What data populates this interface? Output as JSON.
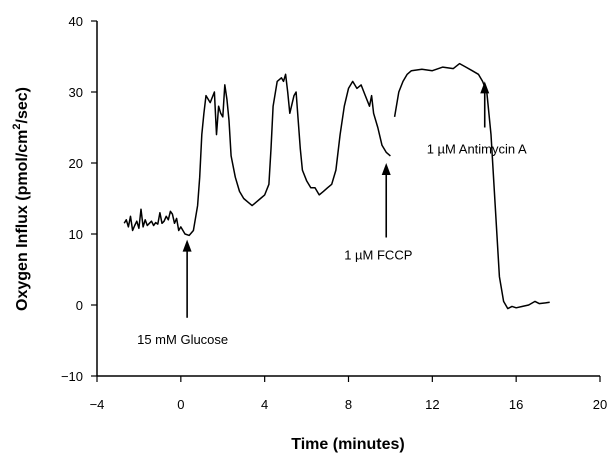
{
  "chart_data": {
    "type": "line",
    "title": "",
    "xlabel": "Time (minutes)",
    "ylabel": "Oxygen Influx (pmol/cm²/sec)",
    "ylabel_parts": {
      "before": "Oxygen Influx (pmol/cm",
      "sup": "2",
      "after": "/sec)"
    },
    "xlim": [
      -4,
      20
    ],
    "ylim": [
      -10,
      40
    ],
    "x_ticks": [
      -4,
      0,
      4,
      8,
      12,
      16,
      20
    ],
    "x_tick_labels": [
      "−4",
      "0",
      "4",
      "8",
      "12",
      "16",
      "20"
    ],
    "y_ticks": [
      -10,
      0,
      10,
      20,
      30,
      40
    ],
    "y_tick_labels": [
      "−10",
      "0",
      "10",
      "20",
      "30",
      "40"
    ],
    "grid": false,
    "legend": "none",
    "line_color": "#000000",
    "series": [
      {
        "segments": [
          [
            [
              -2.7,
              11.5
            ],
            [
              -2.6,
              12.0
            ],
            [
              -2.5,
              11.0
            ],
            [
              -2.4,
              12.5
            ],
            [
              -2.3,
              10.5
            ],
            [
              -2.2,
              11.2
            ],
            [
              -2.1,
              11.8
            ],
            [
              -2.0,
              10.8
            ],
            [
              -1.9,
              13.5
            ],
            [
              -1.8,
              11.0
            ],
            [
              -1.7,
              12.0
            ],
            [
              -1.6,
              11.2
            ],
            [
              -1.5,
              11.5
            ],
            [
              -1.4,
              11.8
            ],
            [
              -1.3,
              11.2
            ],
            [
              -1.2,
              11.6
            ],
            [
              -1.1,
              11.4
            ],
            [
              -1.0,
              13.0
            ],
            [
              -0.9,
              11.5
            ],
            [
              -0.8,
              11.8
            ],
            [
              -0.7,
              12.5
            ],
            [
              -0.6,
              12.0
            ],
            [
              -0.5,
              13.2
            ],
            [
              -0.4,
              12.8
            ],
            [
              -0.3,
              11.5
            ],
            [
              -0.2,
              12.2
            ],
            [
              -0.1,
              10.5
            ],
            [
              0.0,
              11.0
            ],
            [
              0.2,
              10.0
            ],
            [
              0.4,
              9.8
            ],
            [
              0.6,
              10.5
            ],
            [
              0.8,
              14.0
            ],
            [
              0.9,
              18.0
            ],
            [
              1.0,
              24.0
            ],
            [
              1.1,
              27.0
            ],
            [
              1.2,
              29.5
            ],
            [
              1.4,
              28.5
            ],
            [
              1.6,
              30.0
            ],
            [
              1.7,
              24.0
            ],
            [
              1.8,
              28.0
            ],
            [
              1.9,
              27.0
            ],
            [
              2.0,
              26.5
            ],
            [
              2.1,
              31.0
            ],
            [
              2.2,
              29.0
            ],
            [
              2.3,
              26.0
            ],
            [
              2.4,
              21.0
            ],
            [
              2.6,
              18.0
            ],
            [
              2.8,
              16.0
            ],
            [
              3.0,
              15.0
            ],
            [
              3.2,
              14.5
            ],
            [
              3.4,
              14.0
            ],
            [
              3.6,
              14.5
            ],
            [
              3.8,
              15.0
            ],
            [
              4.0,
              15.5
            ],
            [
              4.2,
              17.0
            ],
            [
              4.3,
              22.0
            ],
            [
              4.4,
              28.0
            ],
            [
              4.6,
              31.5
            ],
            [
              4.8,
              32.0
            ],
            [
              4.9,
              31.5
            ],
            [
              5.0,
              32.5
            ],
            [
              5.1,
              30.0
            ],
            [
              5.2,
              27.0
            ],
            [
              5.4,
              29.5
            ],
            [
              5.5,
              30.0
            ],
            [
              5.6,
              26.0
            ],
            [
              5.7,
              22.0
            ],
            [
              5.8,
              19.0
            ],
            [
              6.0,
              17.5
            ],
            [
              6.2,
              16.5
            ],
            [
              6.4,
              16.5
            ],
            [
              6.6,
              15.5
            ],
            [
              6.8,
              16.0
            ],
            [
              7.0,
              16.5
            ],
            [
              7.2,
              17.0
            ],
            [
              7.4,
              19.0
            ],
            [
              7.6,
              24.0
            ],
            [
              7.8,
              28.0
            ],
            [
              8.0,
              30.5
            ],
            [
              8.2,
              31.5
            ],
            [
              8.4,
              30.5
            ],
            [
              8.6,
              31.0
            ],
            [
              8.8,
              29.5
            ],
            [
              9.0,
              28.0
            ],
            [
              9.1,
              29.5
            ],
            [
              9.2,
              27.0
            ],
            [
              9.4,
              25.0
            ],
            [
              9.6,
              22.5
            ],
            [
              9.8,
              21.5
            ],
            [
              10.0,
              21.0
            ]
          ],
          [
            [
              10.2,
              26.5
            ],
            [
              10.4,
              30.0
            ],
            [
              10.6,
              31.5
            ],
            [
              10.8,
              32.5
            ],
            [
              11.0,
              33.0
            ],
            [
              11.5,
              33.2
            ],
            [
              12.0,
              33.0
            ],
            [
              12.5,
              33.5
            ],
            [
              13.0,
              33.3
            ],
            [
              13.3,
              34.0
            ],
            [
              13.6,
              33.5
            ],
            [
              13.9,
              33.0
            ],
            [
              14.2,
              32.5
            ],
            [
              14.4,
              31.5
            ],
            [
              14.6,
              30.0
            ],
            [
              14.8,
              24.0
            ],
            [
              15.0,
              14.0
            ],
            [
              15.2,
              4.0
            ],
            [
              15.4,
              0.5
            ],
            [
              15.6,
              -0.5
            ],
            [
              15.8,
              -0.2
            ],
            [
              16.0,
              -0.4
            ],
            [
              16.3,
              -0.2
            ],
            [
              16.6,
              0.0
            ],
            [
              16.9,
              0.5
            ],
            [
              17.1,
              0.2
            ],
            [
              17.4,
              0.3
            ],
            [
              17.6,
              0.4
            ]
          ]
        ]
      }
    ],
    "annotations": [
      {
        "label": "15 mM Glucose",
        "x": 0.3,
        "y": 9.2,
        "from_y": -1.8
      },
      {
        "label": "1 µM FCCP",
        "x": 9.8,
        "y": 20.0,
        "from_y": 9.5
      },
      {
        "label": "1 µM Antimycin A",
        "x": 14.5,
        "y": 31.5,
        "from_y": 25.0
      }
    ]
  }
}
